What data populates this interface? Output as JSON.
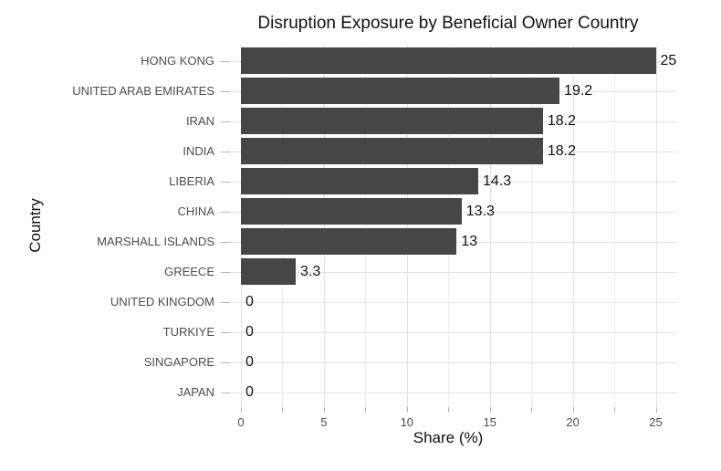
{
  "chart_data": {
    "type": "bar",
    "orientation": "horizontal",
    "title": "Disruption Exposure by Beneficial Owner Country",
    "xlabel": "Share (%)",
    "ylabel": "Country",
    "categories": [
      "HONG KONG",
      "UNITED ARAB EMIRATES",
      "IRAN",
      "INDIA",
      "LIBERIA",
      "CHINA",
      "MARSHALL ISLANDS",
      "GREECE",
      "UNITED KINGDOM",
      "TURKIYE",
      "SINGAPORE",
      "JAPAN"
    ],
    "values": [
      25,
      19.2,
      18.2,
      18.2,
      14.3,
      13.3,
      13,
      3.3,
      0,
      0,
      0,
      0
    ],
    "value_labels": [
      "25",
      "19.2",
      "18.2",
      "18.2",
      "14.3",
      "13.3",
      "13",
      "3.3",
      "0",
      "0",
      "0",
      "0"
    ],
    "xlim": [
      0,
      25
    ],
    "x_major_ticks": [
      0,
      5,
      10,
      15,
      20,
      25
    ],
    "x_tick_step": 2.5,
    "grid": true,
    "legend": false,
    "colors": {
      "bar": "#464646",
      "grid_major": "#e3e3e3",
      "grid_minor": "#eeeeee",
      "axis_tick": "#b3b3b3",
      "axis_text": "#4d4d4d",
      "label_text": "#111111",
      "background": "#ffffff"
    }
  }
}
